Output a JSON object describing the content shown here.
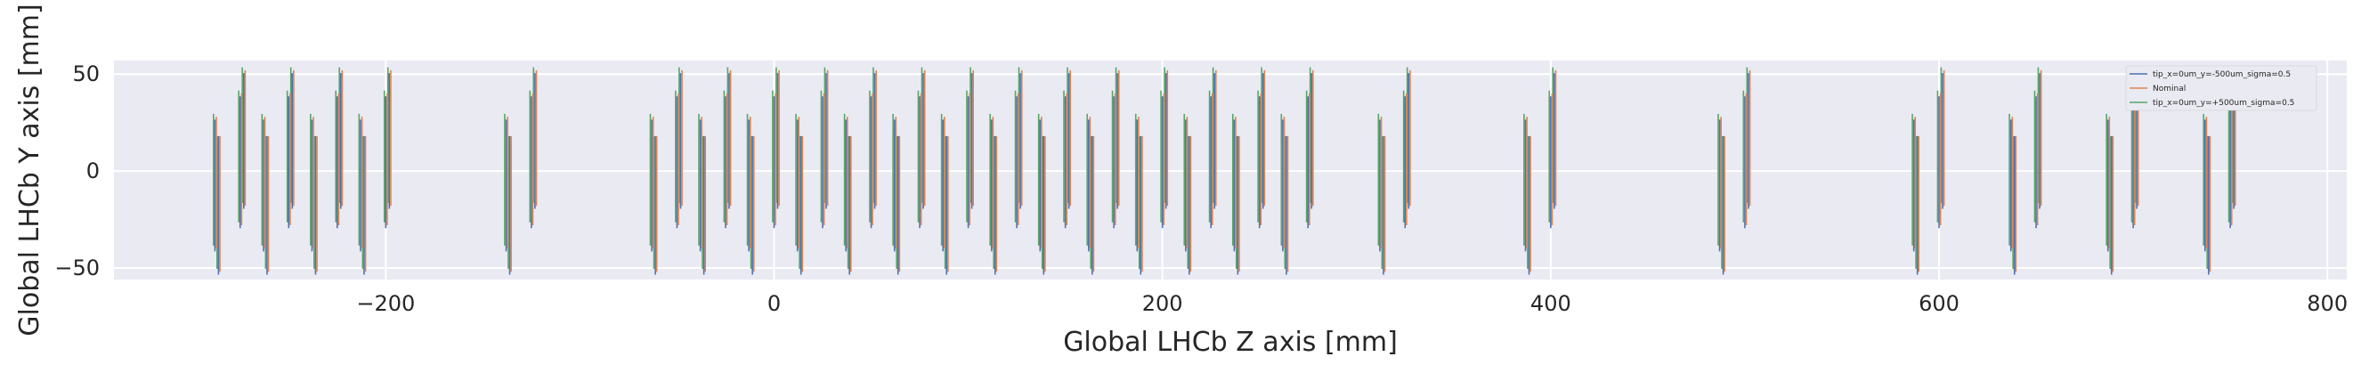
{
  "chart_data": {
    "type": "line",
    "title": "",
    "xlabel": "Global LHCb Z axis [mm]",
    "ylabel": "Global LHCb Y axis [mm]",
    "xlim": [
      -340,
      810
    ],
    "ylim": [
      -56,
      57
    ],
    "grid": true,
    "legend_position": "top-right",
    "x_ticks": [
      -200,
      0,
      200,
      400,
      600,
      800
    ],
    "x_tick_labels": [
      "−200",
      "0",
      "200",
      "400",
      "600",
      "800"
    ],
    "y_ticks": [
      -50,
      0,
      50
    ],
    "y_tick_labels": [
      "−50",
      "0",
      "50"
    ],
    "series": [
      {
        "name": "tip_x=0um_y=-500um_sigma=0.5",
        "color": "#4c72b0",
        "y_offset": -0.5
      },
      {
        "name": "Nominal",
        "color": "#dd8452",
        "y_offset": 0
      },
      {
        "name": "tip_x=0um_y=+500um_sigma=0.5",
        "color": "#55a868",
        "y_offset": 0.5
      }
    ],
    "modules": [
      {
        "z": -288,
        "y": [
          -40,
          28
        ]
      },
      {
        "z": -275,
        "y": [
          -28,
          40
        ]
      },
      {
        "z": -263,
        "y": [
          -40,
          28
        ]
      },
      {
        "z": -250,
        "y": [
          -28,
          40
        ]
      },
      {
        "z": -238,
        "y": [
          -40,
          28
        ]
      },
      {
        "z": -225,
        "y": [
          -28,
          40
        ]
      },
      {
        "z": -213,
        "y": [
          -40,
          28
        ]
      },
      {
        "z": -200,
        "y": [
          -28,
          40
        ]
      },
      {
        "z": -138,
        "y": [
          -40,
          28
        ]
      },
      {
        "z": -125,
        "y": [
          -28,
          40
        ]
      },
      {
        "z": -63,
        "y": [
          -40,
          28
        ]
      },
      {
        "z": -50,
        "y": [
          -28,
          40
        ]
      },
      {
        "z": -38,
        "y": [
          -40,
          28
        ]
      },
      {
        "z": -25,
        "y": [
          -28,
          40
        ]
      },
      {
        "z": -13,
        "y": [
          -40,
          28
        ]
      },
      {
        "z": 0,
        "y": [
          -28,
          40
        ]
      },
      {
        "z": 12,
        "y": [
          -40,
          28
        ]
      },
      {
        "z": 25,
        "y": [
          -28,
          40
        ]
      },
      {
        "z": 37,
        "y": [
          -40,
          28
        ]
      },
      {
        "z": 50,
        "y": [
          -28,
          40
        ]
      },
      {
        "z": 62,
        "y": [
          -40,
          28
        ]
      },
      {
        "z": 75,
        "y": [
          -28,
          40
        ]
      },
      {
        "z": 87,
        "y": [
          -40,
          28
        ]
      },
      {
        "z": 100,
        "y": [
          -28,
          40
        ]
      },
      {
        "z": 112,
        "y": [
          -40,
          28
        ]
      },
      {
        "z": 125,
        "y": [
          -28,
          40
        ]
      },
      {
        "z": 137,
        "y": [
          -40,
          28
        ]
      },
      {
        "z": 150,
        "y": [
          -28,
          40
        ]
      },
      {
        "z": 162,
        "y": [
          -40,
          28
        ]
      },
      {
        "z": 175,
        "y": [
          -28,
          40
        ]
      },
      {
        "z": 187,
        "y": [
          -40,
          28
        ]
      },
      {
        "z": 200,
        "y": [
          -28,
          40
        ]
      },
      {
        "z": 212,
        "y": [
          -40,
          28
        ]
      },
      {
        "z": 225,
        "y": [
          -28,
          40
        ]
      },
      {
        "z": 237,
        "y": [
          -40,
          28
        ]
      },
      {
        "z": 250,
        "y": [
          -28,
          40
        ]
      },
      {
        "z": 262,
        "y": [
          -40,
          28
        ]
      },
      {
        "z": 275,
        "y": [
          -28,
          40
        ]
      },
      {
        "z": 312,
        "y": [
          -40,
          28
        ]
      },
      {
        "z": 325,
        "y": [
          -28,
          40
        ]
      },
      {
        "z": 387,
        "y": [
          -40,
          28
        ]
      },
      {
        "z": 400,
        "y": [
          -28,
          40
        ]
      },
      {
        "z": 487,
        "y": [
          -40,
          28
        ]
      },
      {
        "z": 500,
        "y": [
          -28,
          40
        ]
      },
      {
        "z": 587,
        "y": [
          -40,
          28
        ]
      },
      {
        "z": 600,
        "y": [
          -28,
          40
        ]
      },
      {
        "z": 637,
        "y": [
          -40,
          28
        ]
      },
      {
        "z": 650,
        "y": [
          -28,
          40
        ]
      },
      {
        "z": 687,
        "y": [
          -40,
          28
        ]
      },
      {
        "z": 700,
        "y": [
          -28,
          40
        ]
      },
      {
        "z": 737,
        "y": [
          -40,
          28
        ]
      },
      {
        "z": 750,
        "y": [
          -28,
          40
        ]
      }
    ]
  }
}
